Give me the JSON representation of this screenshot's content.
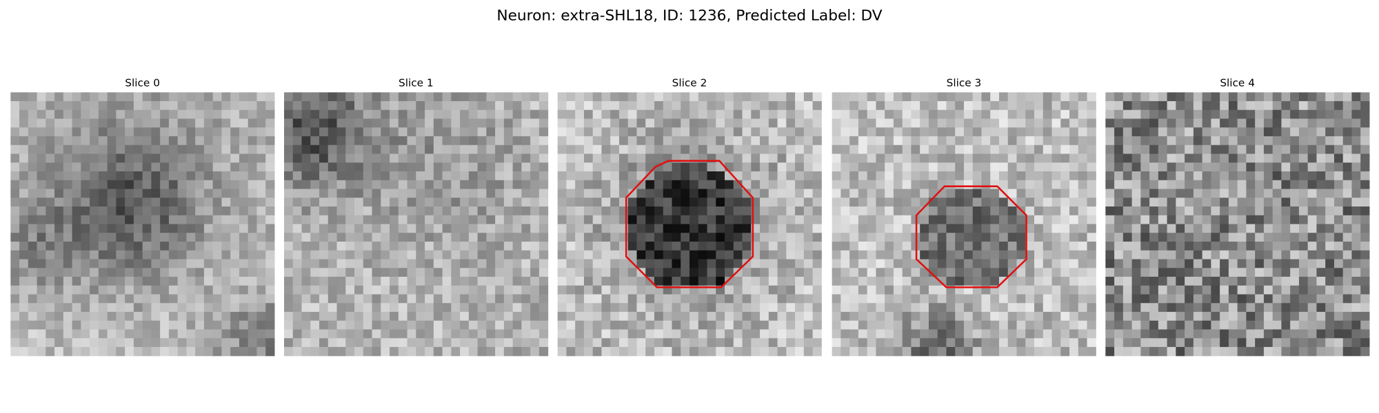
{
  "title": "Neuron: extra-SHL18, ID: 1236, Predicted Label: DV",
  "panels": [
    {
      "title": "Slice 0"
    },
    {
      "title": "Slice 1"
    },
    {
      "title": "Slice 2"
    },
    {
      "title": "Slice 3"
    },
    {
      "title": "Slice 4"
    }
  ]
}
